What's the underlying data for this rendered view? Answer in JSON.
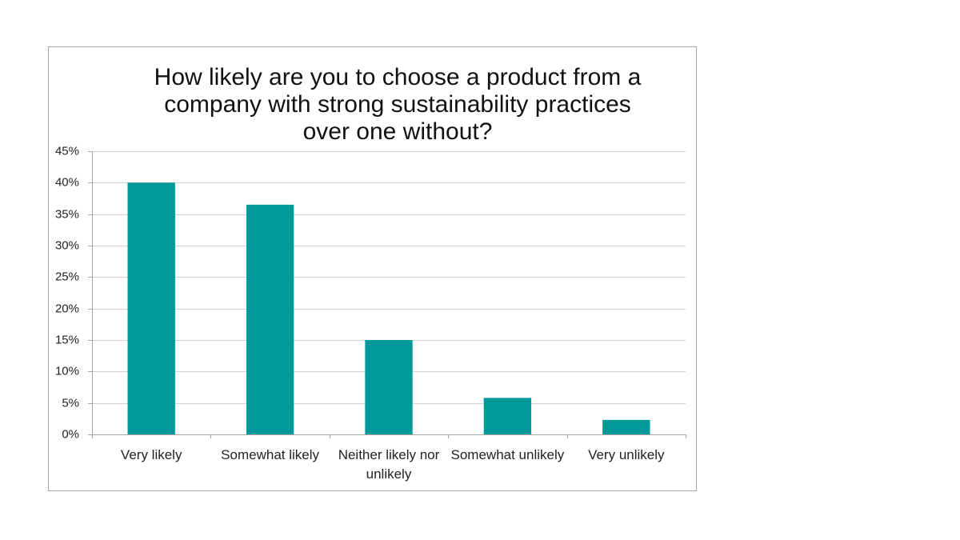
{
  "chart_data": {
    "type": "bar",
    "title": "How likely are you to choose a product from a company with strong sustainability practices over one without?",
    "categories": [
      "Very likely",
      "Somewhat likely",
      "Neither likely nor unlikely",
      "Somewhat unlikely",
      "Very unlikely"
    ],
    "values": [
      40,
      36.5,
      15,
      5.8,
      2.3
    ],
    "color": "#009999",
    "ylim": [
      0,
      45
    ],
    "yticks": [
      {
        "value": 0,
        "label": "0%"
      },
      {
        "value": 5,
        "label": "5%"
      },
      {
        "value": 10,
        "label": "10%"
      },
      {
        "value": 15,
        "label": "15%"
      },
      {
        "value": 20,
        "label": "20%"
      },
      {
        "value": 25,
        "label": "25%"
      },
      {
        "value": 30,
        "label": "30%"
      },
      {
        "value": 35,
        "label": "35%"
      },
      {
        "value": 40,
        "label": "40%"
      },
      {
        "value": 45,
        "label": "45%"
      }
    ],
    "grid": true
  }
}
